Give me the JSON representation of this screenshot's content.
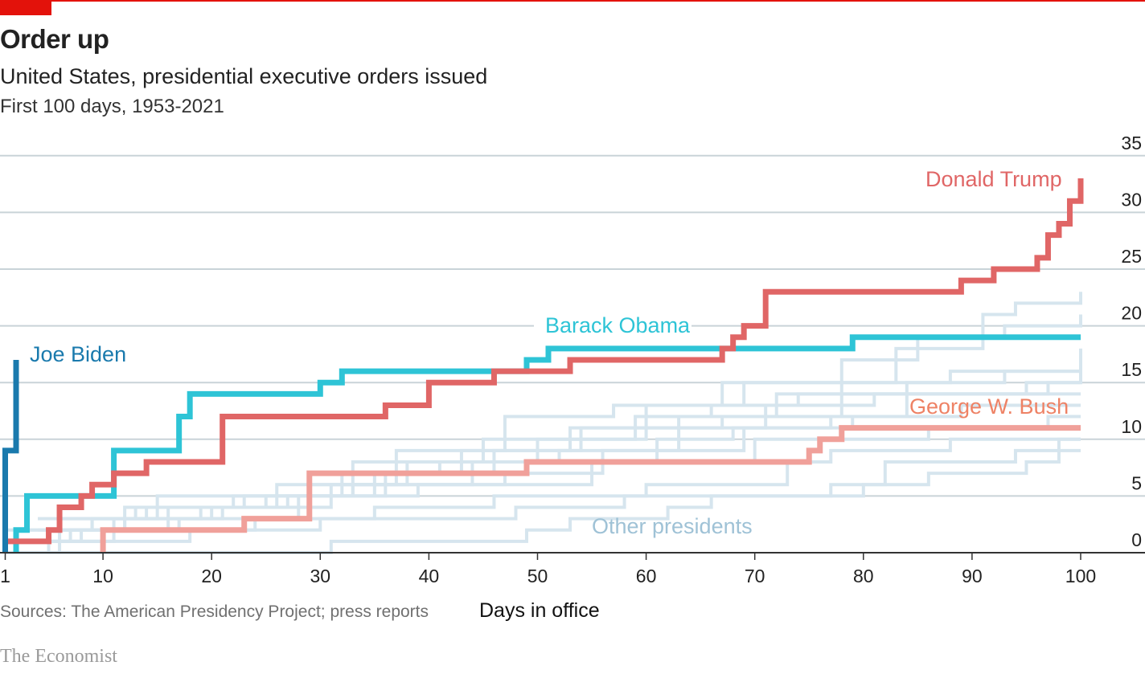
{
  "header": {
    "title": "Order up",
    "subtitle": "United States, presidential executive orders issued",
    "subsubtitle": "First 100 days, 1953-2021"
  },
  "footer": {
    "source": "Sources: The American Presidency Project; press reports",
    "brand": "The Economist"
  },
  "colors": {
    "brand_red": "#e3120b",
    "biden": "#1a7aad",
    "obama": "#2ec4d6",
    "trump": "#e06666",
    "bush": "#f0a09a",
    "bush_label": "#ee8265",
    "other": "#d6e5ee",
    "other_label": "#9fc2d6",
    "gridline": "#c9d3d8",
    "axis": "#333333"
  },
  "chart_data": {
    "type": "line",
    "step": true,
    "title": "Order up",
    "subtitle": "United States, presidential executive orders issued",
    "note": "First 100 days, 1953-2021",
    "xlabel": "Days in office",
    "ylabel": "",
    "xlim": [
      1,
      100
    ],
    "ylim": [
      0,
      35
    ],
    "xticks": [
      1,
      10,
      20,
      30,
      40,
      50,
      60,
      70,
      80,
      90,
      100
    ],
    "yticks": [
      0,
      5,
      10,
      15,
      20,
      25,
      30,
      35
    ],
    "grid": "horizontal",
    "y_axis_side": "right",
    "series": [
      {
        "name": "Other presidents",
        "key": "other",
        "group": true,
        "lines": [
          [
            [
              1,
              0
            ],
            [
              31,
              1
            ],
            [
              49,
              2
            ],
            [
              53,
              3
            ],
            [
              62,
              4
            ],
            [
              66,
              5
            ],
            [
              80,
              6
            ],
            [
              86,
              7
            ],
            [
              95,
              8
            ],
            [
              98,
              9
            ],
            [
              100,
              9
            ]
          ],
          [
            [
              3,
              0
            ],
            [
              5,
              1
            ],
            [
              18,
              2
            ],
            [
              30,
              3
            ],
            [
              48,
              4
            ],
            [
              58,
              5
            ],
            [
              77,
              6
            ],
            [
              82,
              8
            ],
            [
              94,
              9
            ],
            [
              98,
              10
            ],
            [
              100,
              10
            ]
          ],
          [
            [
              2,
              1
            ],
            [
              10,
              2
            ],
            [
              24,
              3
            ],
            [
              35,
              4
            ],
            [
              46,
              5
            ],
            [
              60,
              6
            ],
            [
              73,
              8
            ],
            [
              77,
              9
            ],
            [
              88,
              10
            ],
            [
              100,
              10
            ]
          ],
          [
            [
              4,
              2
            ],
            [
              9,
              3
            ],
            [
              14,
              4
            ],
            [
              26,
              5
            ],
            [
              39,
              6
            ],
            [
              55,
              8
            ],
            [
              70,
              10
            ],
            [
              86,
              11
            ],
            [
              97,
              12
            ],
            [
              100,
              12
            ]
          ],
          [
            [
              2,
              0
            ],
            [
              6,
              2
            ],
            [
              12,
              3
            ],
            [
              21,
              4
            ],
            [
              29,
              6
            ],
            [
              44,
              8
            ],
            [
              61,
              10
            ],
            [
              68,
              11
            ],
            [
              79,
              12
            ],
            [
              89,
              13
            ],
            [
              100,
              13
            ]
          ],
          [
            [
              1,
              1
            ],
            [
              8,
              2
            ],
            [
              17,
              3
            ],
            [
              28,
              5
            ],
            [
              33,
              6
            ],
            [
              47,
              7
            ],
            [
              56,
              9
            ],
            [
              69,
              11
            ],
            [
              77,
              12
            ],
            [
              84,
              14
            ],
            [
              100,
              14
            ]
          ],
          [
            [
              3,
              1
            ],
            [
              7,
              2
            ],
            [
              16,
              4
            ],
            [
              25,
              5
            ],
            [
              35,
              7
            ],
            [
              41,
              8
            ],
            [
              52,
              9
            ],
            [
              63,
              11
            ],
            [
              71,
              13
            ],
            [
              81,
              14
            ],
            [
              97,
              15
            ],
            [
              100,
              15
            ]
          ],
          [
            [
              5,
              1
            ],
            [
              11,
              3
            ],
            [
              20,
              4
            ],
            [
              31,
              6
            ],
            [
              38,
              8
            ],
            [
              50,
              10
            ],
            [
              59,
              12
            ],
            [
              66,
              13
            ],
            [
              74,
              14
            ],
            [
              95,
              15
            ],
            [
              100,
              16
            ]
          ],
          [
            [
              1,
              2
            ],
            [
              9,
              3
            ],
            [
              19,
              4
            ],
            [
              27,
              5
            ],
            [
              36,
              7
            ],
            [
              46,
              9
            ],
            [
              53,
              11
            ],
            [
              63,
              12
            ],
            [
              72,
              14
            ],
            [
              84,
              15
            ],
            [
              93,
              16
            ],
            [
              100,
              17
            ]
          ],
          [
            [
              4,
              3
            ],
            [
              13,
              4
            ],
            [
              23,
              5
            ],
            [
              32,
              7
            ],
            [
              43,
              9
            ],
            [
              54,
              11
            ],
            [
              67,
              12
            ],
            [
              78,
              15
            ],
            [
              88,
              16
            ],
            [
              100,
              18
            ]
          ],
          [
            [
              2,
              2
            ],
            [
              12,
              4
            ],
            [
              22,
              5
            ],
            [
              33,
              8
            ],
            [
              45,
              10
            ],
            [
              60,
              13
            ],
            [
              67,
              15
            ],
            [
              78,
              17
            ],
            [
              85,
              19
            ],
            [
              93,
              20
            ],
            [
              100,
              21
            ]
          ],
          [
            [
              6,
              3
            ],
            [
              15,
              5
            ],
            [
              26,
              6
            ],
            [
              37,
              9
            ],
            [
              47,
              12
            ],
            [
              57,
              13
            ],
            [
              69,
              15
            ],
            [
              83,
              18
            ],
            [
              91,
              21
            ],
            [
              94,
              22
            ],
            [
              100,
              23
            ]
          ]
        ]
      },
      {
        "name": "George W. Bush",
        "key": "bush",
        "points": [
          [
            10,
            0
          ],
          [
            10,
            2
          ],
          [
            23,
            3
          ],
          [
            29,
            7
          ],
          [
            49,
            8
          ],
          [
            75,
            9
          ],
          [
            76,
            10
          ],
          [
            78,
            11
          ],
          [
            100,
            11
          ]
        ]
      },
      {
        "name": "Barack Obama",
        "key": "obama",
        "points": [
          [
            2,
            0
          ],
          [
            2,
            2
          ],
          [
            3,
            5
          ],
          [
            11,
            9
          ],
          [
            17,
            12
          ],
          [
            18,
            14
          ],
          [
            30,
            15
          ],
          [
            32,
            16
          ],
          [
            49,
            17
          ],
          [
            51,
            18
          ],
          [
            68,
            18
          ],
          [
            79,
            19
          ],
          [
            100,
            19
          ]
        ]
      },
      {
        "name": "Donald Trump",
        "key": "trump",
        "points": [
          [
            1,
            1
          ],
          [
            5,
            2
          ],
          [
            6,
            4
          ],
          [
            8,
            5
          ],
          [
            9,
            6
          ],
          [
            11,
            7
          ],
          [
            14,
            8
          ],
          [
            21,
            12
          ],
          [
            36,
            13
          ],
          [
            40,
            15
          ],
          [
            46,
            16
          ],
          [
            53,
            17
          ],
          [
            67,
            18
          ],
          [
            68,
            19
          ],
          [
            69,
            20
          ],
          [
            71,
            23
          ],
          [
            89,
            24
          ],
          [
            92,
            25
          ],
          [
            96,
            26
          ],
          [
            97,
            28
          ],
          [
            98,
            29
          ],
          [
            99,
            31
          ],
          [
            100,
            33
          ]
        ]
      },
      {
        "name": "Joe Biden",
        "key": "biden",
        "points": [
          [
            1,
            0
          ],
          [
            1,
            9
          ],
          [
            2,
            17
          ]
        ]
      }
    ],
    "labels": {
      "biden": "Joe Biden",
      "obama": "Barack Obama",
      "trump": "Donald Trump",
      "bush": "George W. Bush",
      "other": "Other presidents"
    }
  }
}
